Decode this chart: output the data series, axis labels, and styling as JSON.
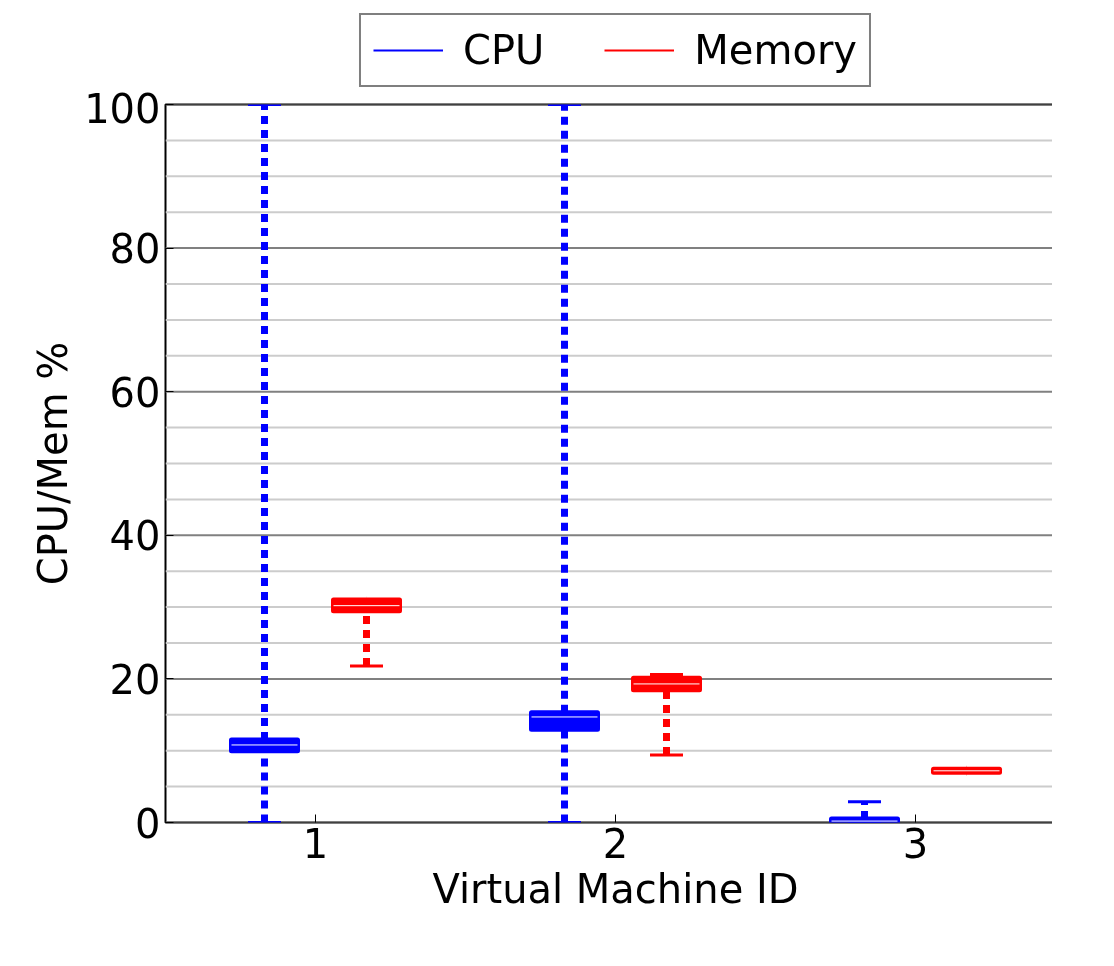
{
  "chart_data": {
    "type": "box",
    "xlabel": "Virtual Machine ID",
    "ylabel": "CPU/Mem %",
    "categories": [
      "1",
      "2",
      "3"
    ],
    "series": [
      {
        "name": "CPU",
        "color": "#0000ff",
        "boxes": [
          {
            "low": 0,
            "q1": 10,
            "median": 10.8,
            "q3": 11.5,
            "high": 100
          },
          {
            "low": 0,
            "q1": 13,
            "median": 14.7,
            "q3": 15.3,
            "high": 100
          },
          {
            "low": 0,
            "q1": 0,
            "median": 0.2,
            "q3": 0.5,
            "high": 2.9
          }
        ]
      },
      {
        "name": "Memory",
        "color": "#ff0000",
        "boxes": [
          {
            "low": 21.8,
            "q1": 29.5,
            "median": 30.2,
            "q3": 31,
            "high": 31
          },
          {
            "low": 9.4,
            "q1": 18.5,
            "median": 19.3,
            "q3": 20.1,
            "high": 20.6
          },
          {
            "low": 7.0,
            "q1": 7.0,
            "median": 7.2,
            "q3": 7.4,
            "high": 7.4
          }
        ]
      }
    ],
    "ylim": [
      0,
      100
    ],
    "yticks": [
      0,
      {
        "value": 5,
        "label": null
      },
      {
        "value": 10,
        "label": null
      },
      {
        "value": 15,
        "label": null
      },
      20,
      {
        "value": 25,
        "label": null
      },
      {
        "value": 30,
        "label": null
      },
      {
        "value": 35,
        "label": null
      },
      40,
      {
        "value": 45,
        "label": null
      },
      {
        "value": 50,
        "label": null
      },
      {
        "value": 55,
        "label": null
      },
      60,
      {
        "value": 65,
        "label": null
      },
      {
        "value": 70,
        "label": null
      },
      {
        "value": 75,
        "label": null
      },
      80,
      {
        "value": 85,
        "label": null
      },
      {
        "value": 90,
        "label": null
      },
      {
        "value": 95,
        "label": null
      },
      100
    ],
    "grid": "y",
    "legend": "top",
    "line_style": "dashed"
  }
}
